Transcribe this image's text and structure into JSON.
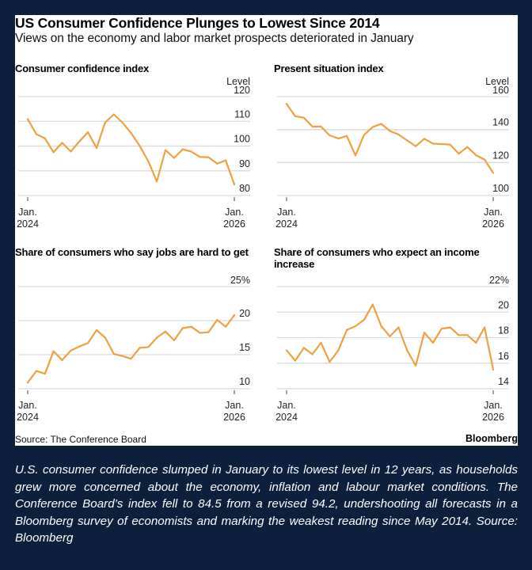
{
  "header": {
    "title": "US Consumer Confidence Plunges to Lowest Since 2014",
    "subtitle": "Views on the economy and labor market prospects deteriorated in January"
  },
  "footer": {
    "source": "Source: The Conference Board",
    "brand": "Bloomberg"
  },
  "caption": "U.S. consumer confidence slumped in January to its lowest level in 12 years, as households grew more concerned about the economy, inflation and labour market conditions. The Conference Board’s index fell to 84.5 from a revised 94.2, undershooting all forecasts in a Bloomberg survey of economists and marking the weakest reading since May 2014. Source: Bloomberg",
  "colors": {
    "line": "#f0a040",
    "grid": "#d9d9d9",
    "background": "#0c1f3d"
  },
  "chart_data": [
    {
      "type": "line",
      "title": "Consumer confidence index",
      "ylabel": "Level",
      "ylim": [
        80,
        120
      ],
      "yticks": [
        "120",
        "110",
        "100",
        "90",
        "80"
      ],
      "yticks_values": [
        120,
        110,
        100,
        90,
        80
      ],
      "x_start_label": [
        "Jan.",
        "2024"
      ],
      "x_end_label": [
        "Jan.",
        "2026"
      ],
      "grid": true,
      "values": [
        110.9,
        104.8,
        103.1,
        97.5,
        101.3,
        97.8,
        101.9,
        105.6,
        99.2,
        109.6,
        112.8,
        109.5,
        105.3,
        100.1,
        93.9,
        85.7,
        98.4,
        95.2,
        98.7,
        97.8,
        95.6,
        95.5,
        92.9,
        94.2,
        84.5
      ]
    },
    {
      "type": "line",
      "title": "Present situation index",
      "ylabel": "Level",
      "ylim": [
        100,
        160
      ],
      "yticks": [
        "160",
        "140",
        "120",
        "100"
      ],
      "yticks_values": [
        160,
        140,
        120,
        100
      ],
      "x_start_label": [
        "Jan.",
        "2024"
      ],
      "x_end_label": [
        "Jan.",
        "2026"
      ],
      "grid": true,
      "values": [
        155.6,
        148.1,
        147.2,
        141.8,
        141.8,
        136.5,
        134.6,
        136.1,
        124.3,
        136.8,
        141.5,
        143.5,
        139.1,
        137.0,
        133.4,
        129.9,
        134.4,
        131.5,
        131.2,
        130.9,
        125.4,
        129.4,
        124.5,
        121.8,
        113.7
      ]
    },
    {
      "type": "line",
      "title": "Share of consumers who say jobs are hard to get",
      "ylabel": "",
      "ylim": [
        10,
        25
      ],
      "yticks": [
        "25%",
        "20",
        "15",
        "10"
      ],
      "yticks_values": [
        25,
        20,
        15,
        10
      ],
      "x_start_label": [
        "Jan.",
        "2024"
      ],
      "x_end_label": [
        "Jan.",
        "2026"
      ],
      "grid": true,
      "values": [
        10.9,
        12.6,
        12.2,
        15.5,
        14.2,
        15.6,
        16.2,
        16.7,
        18.6,
        17.5,
        15.1,
        14.8,
        14.4,
        16.0,
        16.1,
        17.5,
        18.4,
        17.1,
        18.9,
        19.1,
        18.2,
        18.3,
        20.1,
        19.1,
        20.8
      ]
    },
    {
      "type": "line",
      "title": "Share of consumers who expect an income increase",
      "ylabel": "",
      "ylim": [
        14,
        22
      ],
      "yticks": [
        "22%",
        "20",
        "18",
        "16",
        "14"
      ],
      "yticks_values": [
        22,
        20,
        18,
        16,
        14
      ],
      "x_start_label": [
        "Jan.",
        "2024"
      ],
      "x_end_label": [
        "Jan.",
        "2026"
      ],
      "grid": true,
      "values": [
        17.0,
        16.2,
        17.2,
        16.7,
        17.6,
        16.1,
        17.0,
        18.6,
        18.9,
        19.4,
        20.6,
        18.9,
        18.1,
        18.8,
        17.0,
        15.8,
        18.4,
        17.6,
        18.7,
        18.8,
        18.2,
        18.2,
        17.6,
        18.8,
        15.5
      ]
    }
  ]
}
